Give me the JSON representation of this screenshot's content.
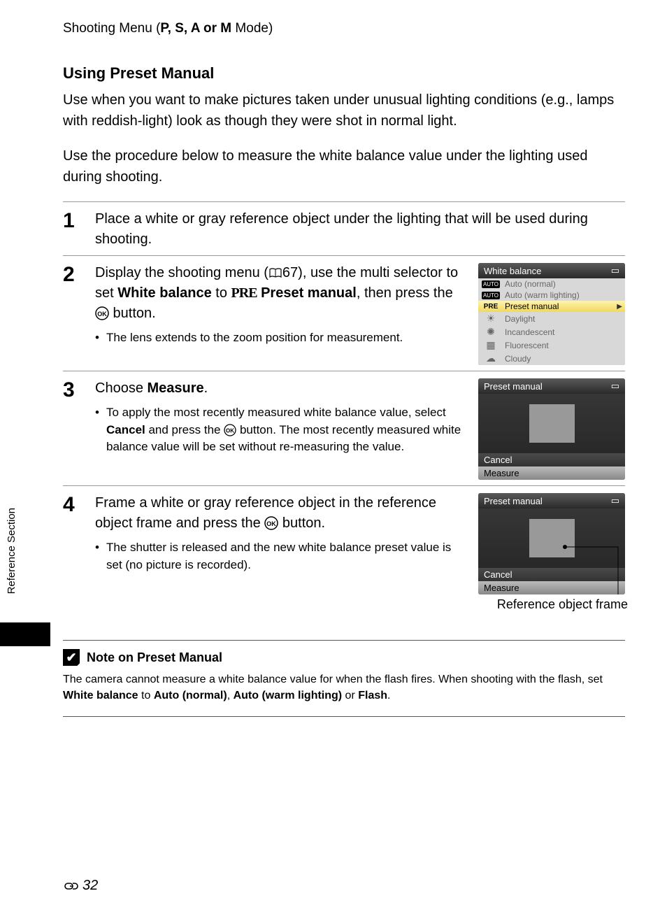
{
  "breadcrumb": {
    "prefix": "Shooting Menu (",
    "modes": "P, S, A or M",
    "suffix": " Mode)"
  },
  "section_title": "Using Preset Manual",
  "intro_p1": "Use when you want to make pictures taken under unusual lighting conditions (e.g., lamps with reddish-light) look as though they were shot in normal light.",
  "intro_p2": "Use the procedure below to measure the white balance value under the lighting used during shooting.",
  "steps": {
    "s1": {
      "num": "1",
      "text": "Place a white or gray reference object under the lighting that will be used during shooting."
    },
    "s2": {
      "num": "2",
      "text_a": "Display the shooting menu (",
      "page_ref": "67",
      "text_b": "), use the multi selector to set ",
      "bold1": "White balance",
      "text_c": " to ",
      "pre": "PRE",
      "bold2": " Preset manual",
      "text_d": ", then press the ",
      "text_e": " button.",
      "sub": "The lens extends to the zoom position for measurement."
    },
    "s3": {
      "num": "3",
      "text_a": "Choose ",
      "bold1": "Measure",
      "text_b": ".",
      "sub_a": "To apply the most recently measured white balance value, select ",
      "sub_bold": "Cancel",
      "sub_b": " and press the ",
      "sub_c": " button. The most recently measured white balance value will be set without re-measuring the value."
    },
    "s4": {
      "num": "4",
      "text_a": "Frame a white or gray reference object in the reference object frame and press the ",
      "text_b": " button.",
      "sub": "The shutter is released and the new white balance preset value is set (no picture is recorded)."
    }
  },
  "screens": {
    "wb": {
      "title": "White balance",
      "items": [
        {
          "icon_type": "auto",
          "label": "Auto (normal)"
        },
        {
          "icon_type": "auto",
          "label": "Auto (warm lighting)"
        },
        {
          "icon_type": "pre",
          "label": "Preset manual",
          "selected": true
        },
        {
          "icon_type": "sun",
          "label": "Daylight"
        },
        {
          "icon_type": "bulb",
          "label": "Incandescent"
        },
        {
          "icon_type": "fluo",
          "label": "Fluorescent"
        },
        {
          "icon_type": "cloud",
          "label": "Cloudy"
        }
      ]
    },
    "preset": {
      "title": "Preset manual",
      "cancel": "Cancel",
      "measure": "Measure"
    }
  },
  "ref_frame_label": "Reference object frame",
  "note": {
    "title": "Note on Preset Manual",
    "body_a": "The camera cannot measure a white balance value for when the flash fires. When shooting with the flash, set ",
    "b1": "White balance",
    "body_b": " to ",
    "b2": "Auto (normal)",
    "body_c": ", ",
    "b3": "Auto (warm lighting)",
    "body_d": " or ",
    "b4": "Flash",
    "body_e": "."
  },
  "side_tab": "Reference Section",
  "page_number": "32"
}
